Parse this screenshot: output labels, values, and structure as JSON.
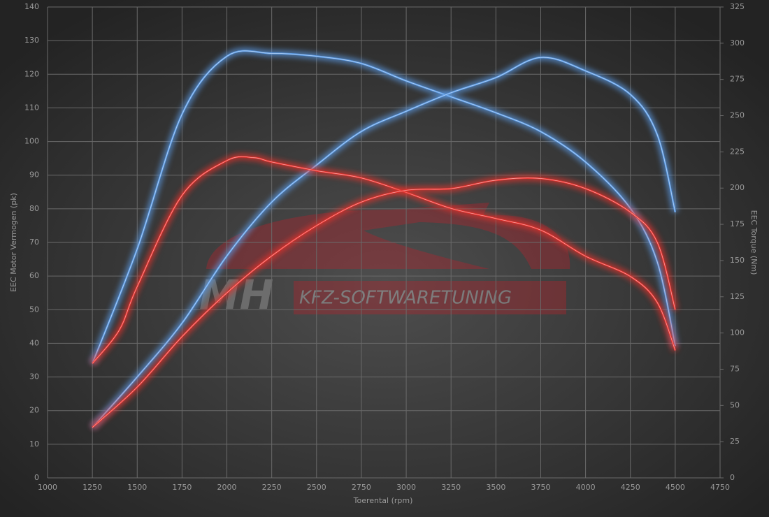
{
  "chart_data": {
    "type": "line",
    "x_label": "Toerental (rpm)",
    "y_label": "EEC Motor Vermogen (pk)",
    "y2_label": "EEC Torque (Nm)",
    "watermark": [
      "MH",
      "KFZ-SOFTWARETUNING"
    ],
    "xlim": [
      1000,
      4750
    ],
    "xticks": [
      1000,
      1250,
      1500,
      1750,
      2000,
      2250,
      2500,
      2750,
      3000,
      3250,
      3500,
      3750,
      4000,
      4250,
      4500,
      4750
    ],
    "ylim": [
      0,
      140
    ],
    "yticks": [
      0,
      10,
      20,
      30,
      40,
      50,
      60,
      70,
      80,
      90,
      100,
      110,
      120,
      130,
      140
    ],
    "y2lim": [
      0,
      325
    ],
    "y2ticks": [
      0,
      25,
      50,
      75,
      100,
      125,
      150,
      175,
      200,
      225,
      250,
      275,
      300,
      325
    ],
    "grid": true,
    "series": [
      {
        "color": "#5b9be6",
        "axis": "y2",
        "x": [
          1250,
          1500,
          1750,
          2000,
          2250,
          2500,
          2750,
          3000,
          3250,
          3500,
          3750,
          4000,
          4250,
          4400,
          4500
        ],
        "values": [
          79,
          158,
          251,
          291,
          293,
          291,
          286,
          274,
          263,
          252,
          239,
          218,
          186,
          149,
          91
        ]
      },
      {
        "color": "#5b9be6",
        "x": [
          1250,
          1500,
          1750,
          2000,
          2250,
          2500,
          2750,
          3000,
          3250,
          3500,
          3750,
          4000,
          4250,
          4400,
          4500
        ],
        "values": [
          15,
          30,
          46,
          66,
          82,
          93,
          103,
          109,
          114.5,
          119,
          125,
          121,
          114,
          102,
          79
        ]
      },
      {
        "color": "#e8302c",
        "axis": "y2",
        "x": [
          1250,
          1400,
          1500,
          1750,
          2000,
          2150,
          2250,
          2500,
          2750,
          3000,
          3250,
          3500,
          3750,
          4000,
          4250,
          4400,
          4500
        ],
        "values": [
          79,
          102,
          132,
          195,
          219,
          221,
          218,
          212,
          207,
          197,
          186,
          179,
          171,
          153,
          139,
          121,
          88
        ]
      },
      {
        "color": "#e8302c",
        "x": [
          1250,
          1500,
          1750,
          2000,
          2250,
          2500,
          2750,
          3000,
          3250,
          3500,
          3750,
          4000,
          4250,
          4400,
          4500
        ],
        "values": [
          15,
          27,
          42,
          55,
          66,
          75,
          82,
          85.5,
          86,
          88.5,
          89,
          86,
          79,
          70,
          50
        ]
      }
    ]
  }
}
